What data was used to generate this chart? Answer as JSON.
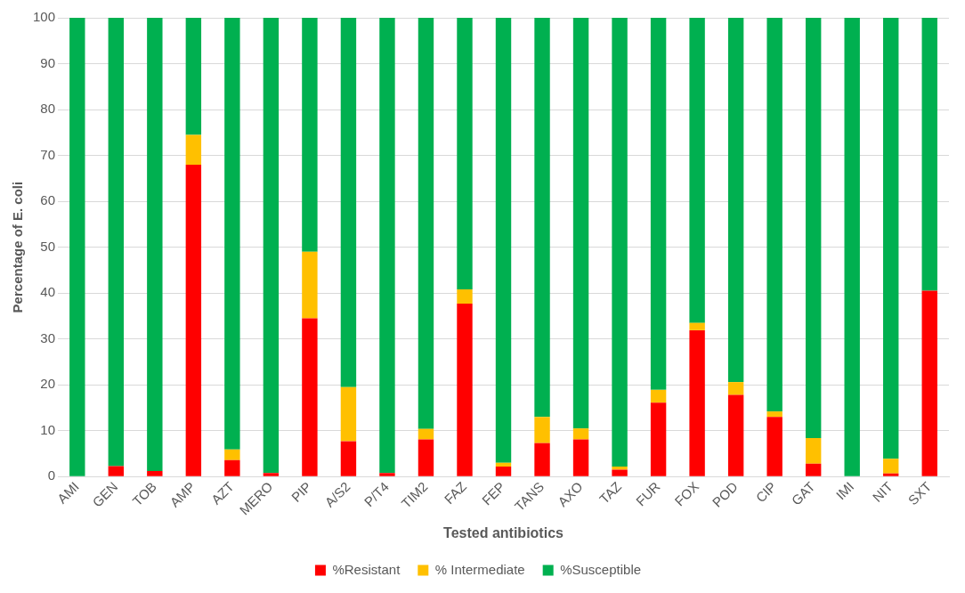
{
  "chart_data": {
    "type": "bar",
    "stacked": true,
    "xlabel": "Tested antibiotics",
    "ylabel": "Percentage of E. coli",
    "categories": [
      "AMI",
      "GEN",
      "TOB",
      "AMP",
      "AZT",
      "MERO",
      "PIP",
      "A/S2",
      "P/T4",
      "TIM2",
      "FAZ",
      "FEP",
      "TANS",
      "AXO",
      "TAZ",
      "FUR",
      "FOX",
      "POD",
      "CIP",
      "GAT",
      "IMI",
      "NIT",
      "SXT"
    ],
    "series": [
      {
        "name": "%Resistant",
        "color": "#ff0000",
        "values": [
          0,
          2.3,
          1.2,
          68,
          3.6,
          0.8,
          34.5,
          7.7,
          0.8,
          8.1,
          37.7,
          2.2,
          7.3,
          8.1,
          1.5,
          16.1,
          31.9,
          17.8,
          13,
          2.8,
          0,
          0.7,
          40.5
        ]
      },
      {
        "name": "% Intermediate",
        "color": "#ffc000",
        "values": [
          0,
          0,
          0,
          6.5,
          2.3,
          0,
          14.5,
          11.8,
          0,
          2.3,
          3.1,
          0.8,
          5.7,
          2.4,
          0.7,
          2.8,
          1.6,
          2.8,
          1.2,
          5.6,
          0,
          3.2,
          0
        ]
      },
      {
        "name": "%Susceptible",
        "color": "#00b050",
        "values": [
          100,
          97.7,
          98.8,
          25.5,
          94.1,
          99.2,
          51,
          80.5,
          99.2,
          89.6,
          59.2,
          97,
          87,
          89.5,
          97.8,
          81.1,
          66.5,
          79.4,
          85.8,
          91.6,
          100,
          96.1,
          59.5
        ]
      }
    ],
    "ylim": [
      0,
      100
    ],
    "yticks": [
      0,
      10,
      20,
      30,
      40,
      50,
      60,
      70,
      80,
      90,
      100
    ],
    "grid": "y",
    "legend": "bottom"
  }
}
